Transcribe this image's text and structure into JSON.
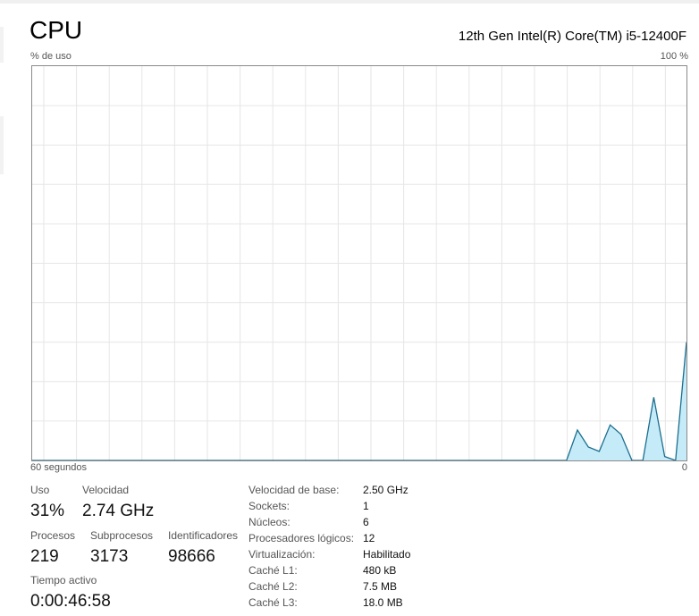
{
  "header": {
    "title": "CPU",
    "cpu_name": "12th Gen Intel(R) Core(TM) i5-12400F"
  },
  "chart_data": {
    "type": "area",
    "ylabel": "% de uso",
    "y_max_label": "100 %",
    "x_left_label": "60 segundos",
    "x_right_label": "0",
    "ylim": [
      0,
      100
    ],
    "xlim": [
      60,
      0
    ],
    "grid": true,
    "line_color": "#1b6e8f",
    "fill_color": "#c6ebf8",
    "x": [
      60,
      11,
      10,
      9,
      8,
      7,
      6,
      5,
      4,
      3,
      2,
      1,
      0
    ],
    "values": [
      0,
      0,
      7.7,
      3.4,
      2.3,
      9,
      6.6,
      0,
      0,
      16,
      1,
      0,
      30
    ]
  },
  "stats": {
    "uso": {
      "label": "Uso",
      "value": "31%"
    },
    "velocidad": {
      "label": "Velocidad",
      "value": "2.74 GHz"
    },
    "procesos": {
      "label": "Procesos",
      "value": "219"
    },
    "subprocesos": {
      "label": "Subprocesos",
      "value": "3173"
    },
    "identificadores": {
      "label": "Identificadores",
      "value": "98666"
    },
    "tiempo": {
      "label": "Tiempo activo",
      "value": "0:00:46:58"
    }
  },
  "details": [
    {
      "key": "Velocidad de base:",
      "value": "2.50 GHz"
    },
    {
      "key": "Sockets:",
      "value": "1"
    },
    {
      "key": "Núcleos:",
      "value": "6"
    },
    {
      "key": "Procesadores lógicos:",
      "value": "12"
    },
    {
      "key": "Virtualización:",
      "value": "Habilitado"
    },
    {
      "key": "Caché L1:",
      "value": "480 kB"
    },
    {
      "key": "Caché L2:",
      "value": "7.5 MB"
    },
    {
      "key": "Caché L3:",
      "value": "18.0 MB"
    }
  ]
}
